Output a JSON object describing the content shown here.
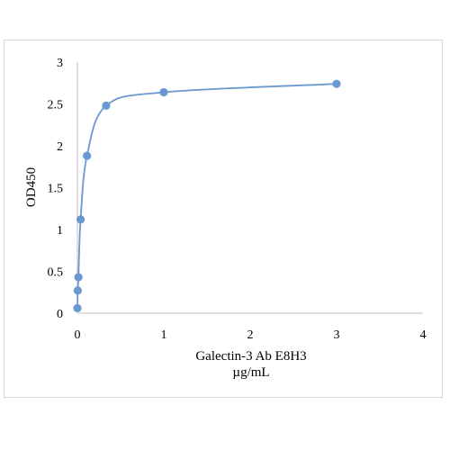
{
  "chart_data": {
    "type": "scatter",
    "xlabel_line1": "Galectin-3 Ab E8H3",
    "xlabel_line2": "µg/mL",
    "ylabel": "OD450",
    "xlim": [
      0,
      4
    ],
    "ylim": [
      0,
      3
    ],
    "xticks": [
      "0",
      "1",
      "2",
      "3",
      "4"
    ],
    "yticks": [
      "0",
      "0.5",
      "1",
      "1.5",
      "2",
      "2.5",
      "3"
    ],
    "grid": false,
    "legend": "none",
    "series": [
      {
        "x": [
          0.0,
          0.004,
          0.012,
          0.037,
          0.111,
          0.333,
          1.0,
          3.0
        ],
        "y": [
          0.06,
          0.27,
          0.43,
          1.12,
          1.88,
          2.48,
          2.64,
          2.74
        ]
      }
    ],
    "colors": {
      "series": "#6a98d0",
      "axis": "#bfbfbf"
    }
  }
}
